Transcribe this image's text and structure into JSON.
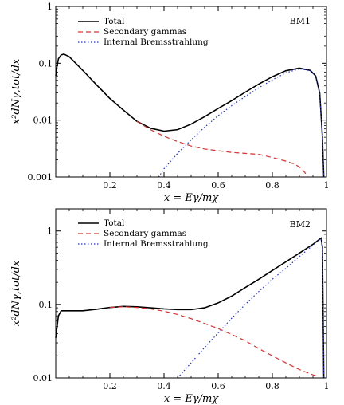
{
  "chart_data": [
    {
      "type": "line",
      "title": "",
      "panel_label": "BM1",
      "xlabel": "x = Eγ/mχ",
      "ylabel": "x²dNγ,tot/dx",
      "xlim": [
        0.0,
        1.0
      ],
      "ylim": [
        0.001,
        1
      ],
      "yscale": "log",
      "x_ticks": [
        "0.2",
        "0.4",
        "0.6",
        "0.8",
        "1"
      ],
      "y_ticks": [
        "0.001",
        "0.01",
        "0.1",
        "1"
      ],
      "legend_position": "top-center",
      "series": [
        {
          "name": "Total",
          "color": "#000000",
          "dash": "solid",
          "x": [
            0.0,
            0.005,
            0.01,
            0.02,
            0.03,
            0.05,
            0.1,
            0.15,
            0.2,
            0.25,
            0.3,
            0.35,
            0.4,
            0.45,
            0.5,
            0.55,
            0.6,
            0.65,
            0.7,
            0.75,
            0.8,
            0.85,
            0.9,
            0.94,
            0.96,
            0.975,
            0.985,
            0.99
          ],
          "y": [
            0.06,
            0.09,
            0.12,
            0.14,
            0.145,
            0.13,
            0.075,
            0.042,
            0.024,
            0.015,
            0.0095,
            0.0072,
            0.0064,
            0.0068,
            0.0085,
            0.0115,
            0.016,
            0.022,
            0.031,
            0.043,
            0.058,
            0.074,
            0.082,
            0.075,
            0.06,
            0.03,
            0.005,
            0.001
          ]
        },
        {
          "name": "Secondary gammas",
          "color": "#e03030",
          "dash": "dashed",
          "x": [
            0.3,
            0.35,
            0.4,
            0.45,
            0.5,
            0.55,
            0.6,
            0.65,
            0.7,
            0.75,
            0.8,
            0.85,
            0.88,
            0.9,
            0.92,
            0.93
          ],
          "y": [
            0.0095,
            0.0068,
            0.0052,
            0.0042,
            0.0035,
            0.0031,
            0.0029,
            0.0027,
            0.0026,
            0.0025,
            0.0022,
            0.0019,
            0.0017,
            0.0015,
            0.0012,
            0.001
          ]
        },
        {
          "name": "Internal Bremsstrahlung",
          "color": "#2233cc",
          "dash": "dotted",
          "x": [
            0.38,
            0.4,
            0.45,
            0.5,
            0.55,
            0.6,
            0.65,
            0.7,
            0.75,
            0.8,
            0.85,
            0.9,
            0.94,
            0.96,
            0.975,
            0.985,
            0.99
          ],
          "y": [
            0.001,
            0.0014,
            0.0026,
            0.0045,
            0.0075,
            0.012,
            0.018,
            0.026,
            0.037,
            0.051,
            0.068,
            0.08,
            0.074,
            0.059,
            0.03,
            0.005,
            0.001
          ]
        }
      ]
    },
    {
      "type": "line",
      "title": "",
      "panel_label": "BM2",
      "xlabel": "x = Eγ/mχ",
      "ylabel": "x²dNγ,tot/dx",
      "xlim": [
        0.0,
        1.0
      ],
      "ylim": [
        0.01,
        2
      ],
      "yscale": "log",
      "x_ticks": [
        "0.2",
        "0.4",
        "0.6",
        "0.8",
        "1"
      ],
      "y_ticks": [
        "0.01",
        "0.1",
        "1"
      ],
      "legend_position": "top-center",
      "series": [
        {
          "name": "Total",
          "color": "#000000",
          "dash": "solid",
          "x": [
            0.0,
            0.005,
            0.01,
            0.02,
            0.04,
            0.1,
            0.15,
            0.2,
            0.25,
            0.3,
            0.35,
            0.4,
            0.45,
            0.5,
            0.55,
            0.6,
            0.65,
            0.7,
            0.75,
            0.8,
            0.85,
            0.9,
            0.95,
            0.97,
            0.98,
            0.985,
            0.99
          ],
          "y": [
            0.035,
            0.05,
            0.07,
            0.082,
            0.082,
            0.082,
            0.086,
            0.091,
            0.094,
            0.093,
            0.09,
            0.087,
            0.085,
            0.085,
            0.09,
            0.105,
            0.13,
            0.17,
            0.22,
            0.29,
            0.38,
            0.5,
            0.66,
            0.75,
            0.8,
            0.6,
            0.01
          ]
        },
        {
          "name": "Secondary gammas",
          "color": "#e03030",
          "dash": "dashed",
          "x": [
            0.2,
            0.25,
            0.3,
            0.35,
            0.4,
            0.45,
            0.5,
            0.55,
            0.6,
            0.65,
            0.7,
            0.75,
            0.8,
            0.85,
            0.9,
            0.95,
            0.97
          ],
          "y": [
            0.091,
            0.093,
            0.091,
            0.087,
            0.081,
            0.073,
            0.064,
            0.055,
            0.047,
            0.039,
            0.032,
            0.025,
            0.02,
            0.016,
            0.013,
            0.011,
            0.0105
          ]
        },
        {
          "name": "Internal Bremsstrahlung",
          "color": "#2233cc",
          "dash": "dotted",
          "x": [
            0.45,
            0.5,
            0.55,
            0.6,
            0.65,
            0.7,
            0.75,
            0.8,
            0.85,
            0.9,
            0.95,
            0.97,
            0.98,
            0.985,
            0.99
          ],
          "y": [
            0.01,
            0.016,
            0.026,
            0.041,
            0.065,
            0.1,
            0.15,
            0.22,
            0.31,
            0.45,
            0.64,
            0.74,
            0.79,
            0.6,
            0.01
          ]
        }
      ]
    }
  ]
}
